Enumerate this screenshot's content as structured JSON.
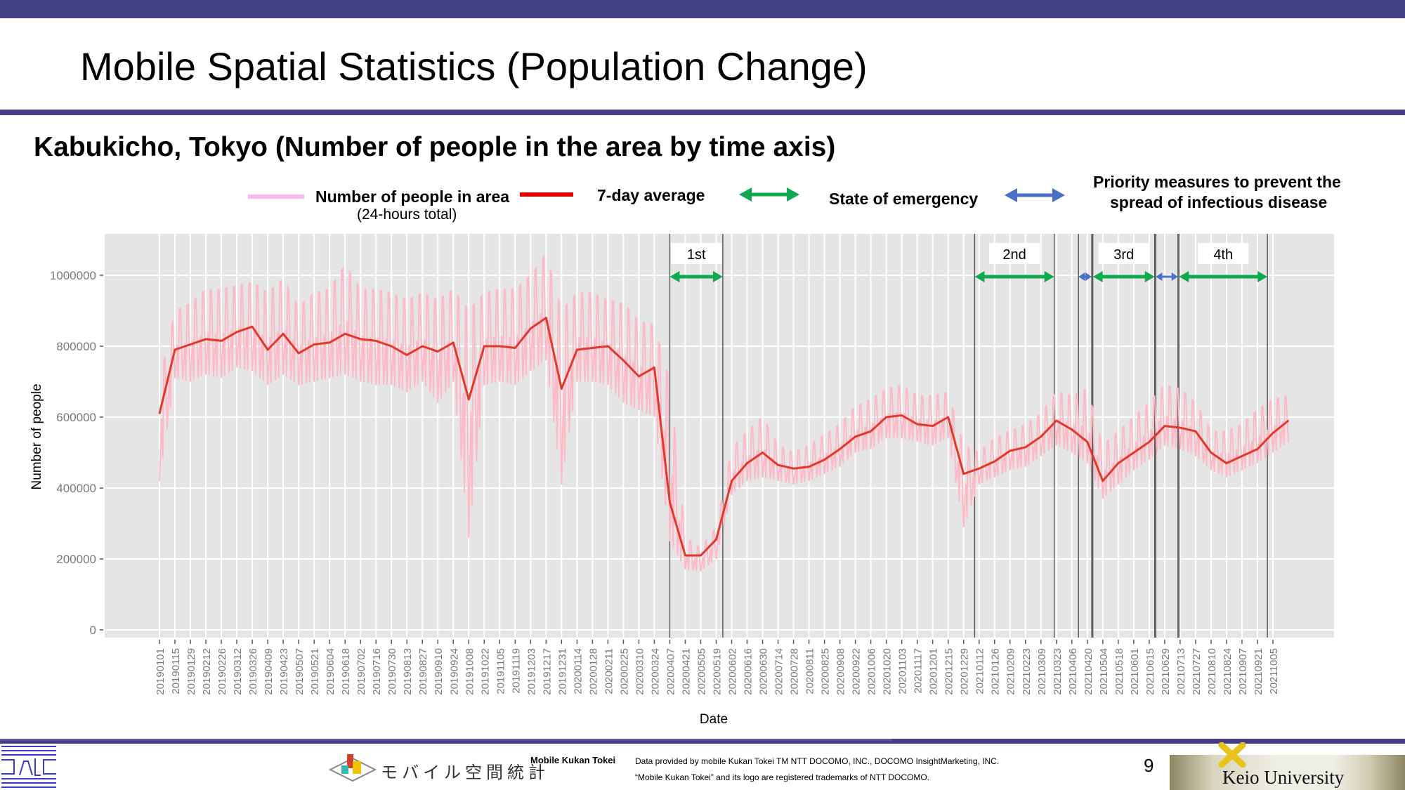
{
  "slide": {
    "title": "Mobile Spatial Statistics (Population Change)",
    "subtitle": "Kabukicho, Tokyo (Number of people in the area by time axis)",
    "page_number": "9"
  },
  "legend": {
    "daily_label": "Number of people in area",
    "daily_sublabel": "(24-hours total)",
    "avg_label": "7-day average",
    "emergency_label": "State of emergency",
    "priority_label_line1": "Priority measures to prevent the",
    "priority_label_line2": "spread of infectious disease"
  },
  "colors": {
    "brand_bar": "#423f87",
    "daily": "#ffb9c6",
    "daily_legend": "#f9b8f0",
    "average": "#e0392b",
    "average_legend": "#e00000",
    "emergency": "#10a950",
    "priority": "#4a72c4",
    "plot_bg": "#e5e5e5",
    "grid": "#ffffff"
  },
  "chart_data": {
    "type": "line",
    "title": "Kabukicho, Tokyo (Number of people in the area by time axis)",
    "xlabel": "Date",
    "ylabel": "Number of people",
    "ylim": [
      0,
      1100000
    ],
    "yticks": [
      0,
      200000,
      400000,
      600000,
      800000,
      1000000
    ],
    "ytick_labels": [
      "0",
      "200000",
      "400000",
      "600000",
      "800000",
      "1000000"
    ],
    "x_start": "20190101",
    "x_step_days": 14,
    "xtick_labels": [
      "20190101",
      "20190115",
      "20190129",
      "20190212",
      "20190226",
      "20190312",
      "20190326",
      "20190409",
      "20190423",
      "20190507",
      "20190521",
      "20190604",
      "20190618",
      "20190702",
      "20190716",
      "20190730",
      "20190813",
      "20190827",
      "20190910",
      "20190924",
      "20191008",
      "20191022",
      "20191105",
      "20191119",
      "20191203",
      "20191217",
      "20191231",
      "20200114",
      "20200128",
      "20200211",
      "20200225",
      "20200310",
      "20200324",
      "20200407",
      "20200421",
      "20200505",
      "20200519",
      "20200602",
      "20200616",
      "20200630",
      "20200714",
      "20200728",
      "20200811",
      "20200825",
      "20200908",
      "20200922",
      "20201006",
      "20201020",
      "20201103",
      "20201117",
      "20201201",
      "20201215",
      "20201229",
      "20210112",
      "20210126",
      "20210209",
      "20210223",
      "20210309",
      "20210323",
      "20210406",
      "20210420",
      "20210504",
      "20210518",
      "20210601",
      "20210615",
      "20210629",
      "20210713",
      "20210727",
      "20210810",
      "20210824",
      "20210907",
      "20210921",
      "20211005"
    ],
    "grid": true,
    "legend_position": "top",
    "series": [
      {
        "name": "7-day average",
        "sample_every_days": 14,
        "values": [
          610000,
          790000,
          805000,
          820000,
          815000,
          840000,
          855000,
          790000,
          835000,
          780000,
          805000,
          810000,
          835000,
          820000,
          815000,
          800000,
          775000,
          800000,
          785000,
          810000,
          650000,
          800000,
          800000,
          795000,
          850000,
          880000,
          680000,
          790000,
          795000,
          800000,
          760000,
          715000,
          740000,
          360000,
          210000,
          210000,
          255000,
          420000,
          470000,
          500000,
          465000,
          455000,
          460000,
          480000,
          510000,
          545000,
          560000,
          600000,
          605000,
          580000,
          575000,
          600000,
          440000,
          455000,
          475000,
          505000,
          515000,
          545000,
          590000,
          565000,
          530000,
          420000,
          470000,
          500000,
          530000,
          575000,
          570000,
          560000,
          500000,
          470000,
          490000,
          510000,
          555000,
          590000
        ]
      },
      {
        "name": "Number of people in area (24-hours total)",
        "sample_every_days": 14,
        "daily_high": [
          700000,
          900000,
          920000,
          960000,
          960000,
          970000,
          980000,
          950000,
          990000,
          910000,
          950000,
          960000,
          1030000,
          960000,
          960000,
          950000,
          930000,
          950000,
          930000,
          960000,
          900000,
          950000,
          960000,
          960000,
          1000000,
          1060000,
          900000,
          950000,
          950000,
          930000,
          920000,
          870000,
          860000,
          700000,
          260000,
          230000,
          290000,
          510000,
          560000,
          600000,
          520000,
          500000,
          520000,
          550000,
          580000,
          630000,
          650000,
          680000,
          690000,
          660000,
          660000,
          670000,
          520000,
          500000,
          540000,
          560000,
          580000,
          610000,
          670000,
          660000,
          680000,
          520000,
          560000,
          600000,
          640000,
          690000,
          680000,
          640000,
          560000,
          560000,
          580000,
          620000,
          650000,
          660000
        ],
        "daily_low": [
          420000,
          710000,
          700000,
          720000,
          710000,
          740000,
          730000,
          690000,
          720000,
          690000,
          700000,
          710000,
          720000,
          700000,
          690000,
          690000,
          670000,
          700000,
          640000,
          700000,
          260000,
          690000,
          700000,
          690000,
          730000,
          760000,
          410000,
          700000,
          700000,
          690000,
          640000,
          620000,
          600000,
          250000,
          170000,
          165000,
          200000,
          380000,
          420000,
          430000,
          420000,
          410000,
          420000,
          440000,
          460000,
          500000,
          510000,
          540000,
          540000,
          530000,
          520000,
          540000,
          290000,
          410000,
          430000,
          450000,
          460000,
          490000,
          520000,
          500000,
          470000,
          370000,
          410000,
          450000,
          480000,
          520000,
          510000,
          490000,
          450000,
          430000,
          450000,
          470000,
          500000,
          530000
        ]
      }
    ],
    "annotations": [
      {
        "label": "1st",
        "type": "State of emergency",
        "start": "20200407",
        "end": "20200525"
      },
      {
        "label": "2nd",
        "type": "State of emergency",
        "start": "20210108",
        "end": "20210321"
      },
      {
        "label": "",
        "type": "Priority measures to prevent the spread of infectious disease",
        "start": "20210412",
        "end": "20210424"
      },
      {
        "label": "3rd",
        "type": "State of emergency",
        "start": "20210425",
        "end": "20210620"
      },
      {
        "label": "",
        "type": "Priority measures to prevent the spread of infectious disease",
        "start": "20210621",
        "end": "20210711"
      },
      {
        "label": "4th",
        "type": "State of emergency",
        "start": "20210712",
        "end": "20210930"
      }
    ]
  },
  "footer": {
    "jp_logo_text": "モバイル空間統計",
    "brand_name": "Mobile Kukan Tokei",
    "credit_line1": "Data provided by mobile Kukan Tokei TM NTT DOCOMO, INC., DOCOMO InsightMarketing, INC.",
    "credit_line2": "“Mobile Kukan Tokei” and its logo are registered trademarks of NTT DOCOMO.",
    "university": "Keio University"
  }
}
